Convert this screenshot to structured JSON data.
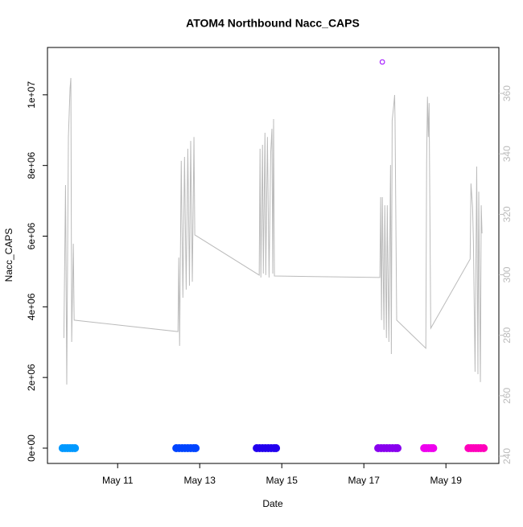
{
  "chart_data": {
    "type": "line",
    "title": "ATOM4 Northbound Nacc_CAPS",
    "x_label": "Date",
    "y_label": "Nacc_CAPS",
    "xlim": [
      9.29,
      20.29
    ],
    "xticks": [
      {
        "value": 11,
        "label": "May 11"
      },
      {
        "value": 13,
        "label": "May 13"
      },
      {
        "value": 15,
        "label": "May 15"
      },
      {
        "value": 17,
        "label": "May 17"
      },
      {
        "value": 19,
        "label": "May 19"
      }
    ],
    "ylim": [
      -433000,
      11340000
    ],
    "yticks": [
      {
        "value": 0,
        "label": "0e+00"
      },
      {
        "value": 2000000,
        "label": "2e+06"
      },
      {
        "value": 4000000,
        "label": "4e+06"
      },
      {
        "value": 6000000,
        "label": "6e+06"
      },
      {
        "value": 8000000,
        "label": "8e+06"
      },
      {
        "value": 10000000,
        "label": "1e+07"
      }
    ],
    "y2lim": [
      237.6,
      375.2
    ],
    "y2ticks": [
      240,
      260,
      280,
      300,
      320,
      340,
      360
    ],
    "y2_color": "#bbbbbb",
    "series": [
      {
        "type": "line",
        "axis": "y2",
        "color": "#bbbbbb",
        "x": [
          9.69,
          9.73,
          9.76,
          9.8,
          9.84,
          9.86,
          9.88,
          9.92,
          9.94,
          12.47,
          12.49,
          12.51,
          12.55,
          12.59,
          12.63,
          12.67,
          12.71,
          12.75,
          12.78,
          12.82,
          12.86,
          12.88,
          14.45,
          14.47,
          14.49,
          14.53,
          14.55,
          14.59,
          14.61,
          14.65,
          14.69,
          14.73,
          14.76,
          14.78,
          14.8,
          14.82,
          17.39,
          17.41,
          17.43,
          17.45,
          17.49,
          17.51,
          17.55,
          17.57,
          17.61,
          17.65,
          17.67,
          17.69,
          17.73,
          17.75,
          17.76,
          17.8,
          18.51,
          18.53,
          18.55,
          18.57,
          18.59,
          18.63,
          19.59,
          19.61,
          19.65,
          19.67,
          19.71,
          19.75,
          19.78,
          19.8,
          19.84,
          19.86,
          19.88
        ],
        "values": [
          279.1,
          329.7,
          263.7,
          345.6,
          361.6,
          365.1,
          277.8,
          310.3,
          285.0,
          281.2,
          305.7,
          276.5,
          337.7,
          292.4,
          339.0,
          295.1,
          341.7,
          296.4,
          344.3,
          297.7,
          345.6,
          313.2,
          299.9,
          341.7,
          299.1,
          343.0,
          300.4,
          347.0,
          299.9,
          345.6,
          299.1,
          340.3,
          348.3,
          300.4,
          351.5,
          299.6,
          299.1,
          325.7,
          285.0,
          325.7,
          281.8,
          323.0,
          279.1,
          323.0,
          277.8,
          336.3,
          273.8,
          351.0,
          356.3,
          359.5,
          351.0,
          285.0,
          275.7,
          337.7,
          358.9,
          345.6,
          356.8,
          282.3,
          305.2,
          330.2,
          322.2,
          311.0,
          267.9,
          335.8,
          267.1,
          327.5,
          264.5,
          323.0,
          313.7
        ]
      },
      {
        "type": "scatter",
        "color": "#0099ff",
        "x": [
          9.66,
          9.72,
          9.78,
          9.84,
          9.9,
          9.96
        ],
        "values": [
          0,
          0,
          0,
          0,
          0,
          0
        ]
      },
      {
        "type": "scatter",
        "color": "#0044ff",
        "x": [
          12.43,
          12.5,
          12.57,
          12.64,
          12.71,
          12.78,
          12.85,
          12.9
        ],
        "values": [
          0,
          0,
          0,
          0,
          0,
          0,
          0,
          0
        ]
      },
      {
        "type": "scatter",
        "color": "#2200ee",
        "x": [
          14.39,
          14.46,
          14.53,
          14.6,
          14.67,
          14.74,
          14.81,
          14.86
        ],
        "values": [
          0,
          0,
          0,
          0,
          0,
          0,
          0,
          0
        ]
      },
      {
        "type": "scatter",
        "color": "#8800ee",
        "x": [
          17.35,
          17.42,
          17.49,
          17.56,
          17.63,
          17.7,
          17.77,
          17.82
        ],
        "values": [
          0,
          0,
          0,
          0,
          0,
          0,
          0,
          0
        ]
      },
      {
        "type": "scatter",
        "color": "#ee00ee",
        "x": [
          18.47,
          18.52,
          18.58,
          18.64,
          18.69
        ],
        "values": [
          0,
          0,
          0,
          0,
          0
        ]
      },
      {
        "type": "scatter",
        "color": "#ff00bb",
        "x": [
          19.55,
          19.61,
          19.67,
          19.73,
          19.79,
          19.85,
          19.92
        ],
        "values": [
          0,
          0,
          0,
          0,
          0,
          0,
          0
        ]
      },
      {
        "type": "scatter",
        "marker": "open",
        "color": "#9900ff",
        "x": [
          17.45
        ],
        "values": [
          10930000
        ]
      }
    ]
  }
}
